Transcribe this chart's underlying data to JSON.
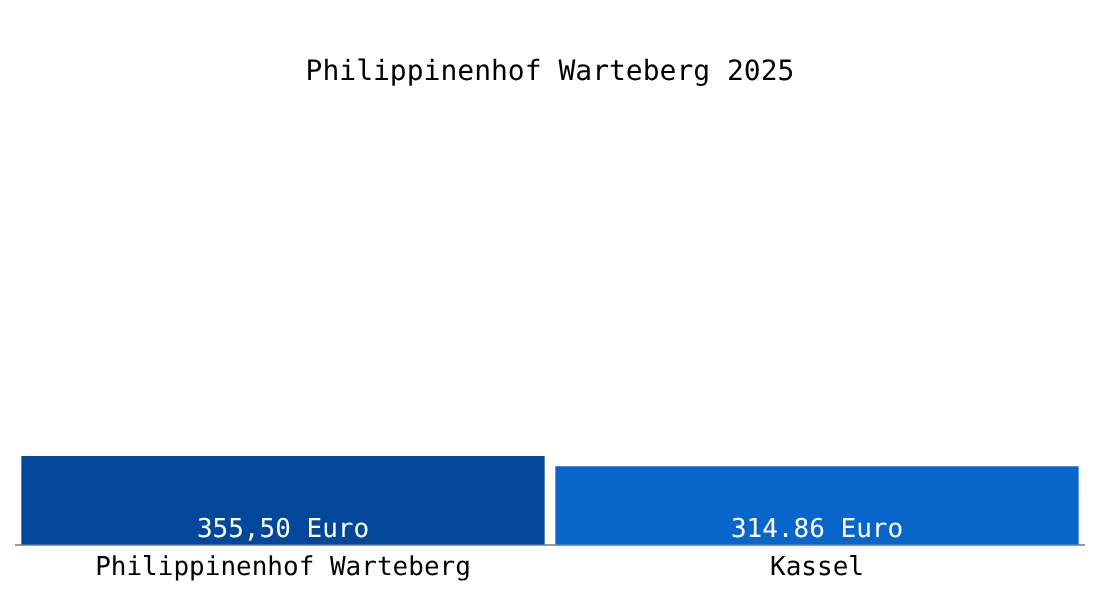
{
  "chart_data": {
    "type": "bar",
    "title": "Philippinenhof Warteberg 2025",
    "categories": [
      "Philippinenhof Warteberg",
      "Kassel"
    ],
    "values": [
      355.5,
      314.86
    ],
    "value_labels": [
      "355,50 Euro",
      "314.86 Euro"
    ],
    "colors": [
      "#03479b",
      "#0865c9"
    ],
    "grid": false,
    "legend": false
  }
}
